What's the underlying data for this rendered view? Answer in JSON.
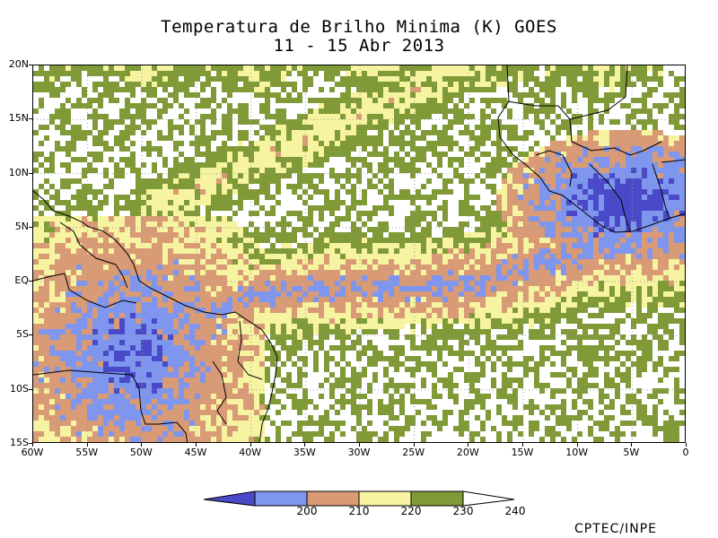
{
  "header": {
    "title": "Temperatura de Brilho Minima (K) GOES",
    "subtitle": "11 - 15 Abr 2013"
  },
  "map": {
    "lat_labels": [
      "20N",
      "15N",
      "10N",
      "5N",
      "EQ",
      "5S",
      "10S",
      "15S"
    ],
    "lon_labels": [
      "60W",
      "55W",
      "50W",
      "45W",
      "40W",
      "35W",
      "30W",
      "25W",
      "20W",
      "15W",
      "10W",
      "5W",
      "0"
    ],
    "lat_range": [
      -15,
      20
    ],
    "lon_range": [
      -60,
      0
    ]
  },
  "legend": {
    "colors": [
      "#4a4ac8",
      "#7f96ee",
      "#d99a76",
      "#f6f4a0",
      "#7f9a36",
      "#ffffff"
    ],
    "labels": [
      "200",
      "210",
      "220",
      "230",
      "240"
    ]
  },
  "footer": {
    "credit": "CPTEC/INPE"
  }
}
